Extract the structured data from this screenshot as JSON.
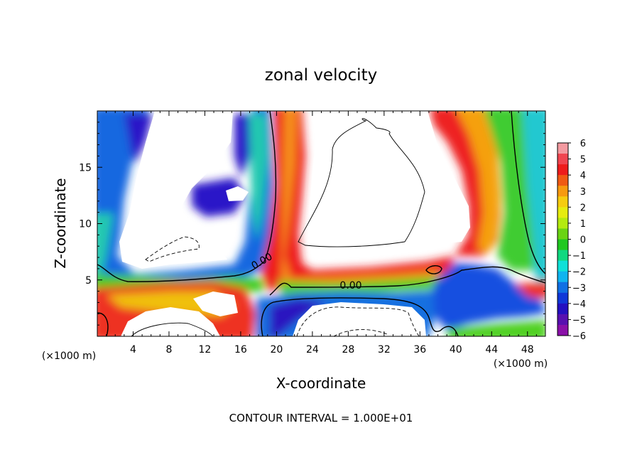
{
  "chart_data": {
    "type": "heatmap",
    "title": "zonal velocity",
    "xlabel": "X-coordinate",
    "ylabel": "Z-coordinate",
    "x_unit": "(×1000 m)",
    "y_unit": "(×1000 m)",
    "xlim": [
      0,
      50
    ],
    "ylim": [
      0,
      20
    ],
    "x_ticks": [
      "4",
      "8",
      "12",
      "16",
      "20",
      "24",
      "28",
      "32",
      "36",
      "40",
      "44",
      "48"
    ],
    "y_ticks": [
      "5",
      "10",
      "15"
    ],
    "colorbar": {
      "range": [
        -6,
        6
      ],
      "ticks": [
        "6",
        "5",
        "4",
        "3",
        "2",
        "1",
        "0",
        "−1",
        "−2",
        "−3",
        "−4",
        "−5",
        "−6"
      ],
      "colors": [
        "#f39aa0",
        "#f04550",
        "#ee1c1c",
        "#f05a14",
        "#f79a10",
        "#f6cc10",
        "#e6ec10",
        "#b4ea10",
        "#6ad414",
        "#20c820",
        "#10d880",
        "#10e0d8",
        "#10b4f0",
        "#1070e4",
        "#1038d8",
        "#2410c0",
        "#5810b0",
        "#8a10a8"
      ]
    },
    "contour_labels": [
      "0.00",
      "0.00"
    ],
    "contour_interval_note": "CONTOUR INTERVAL = 1.000E+01"
  }
}
